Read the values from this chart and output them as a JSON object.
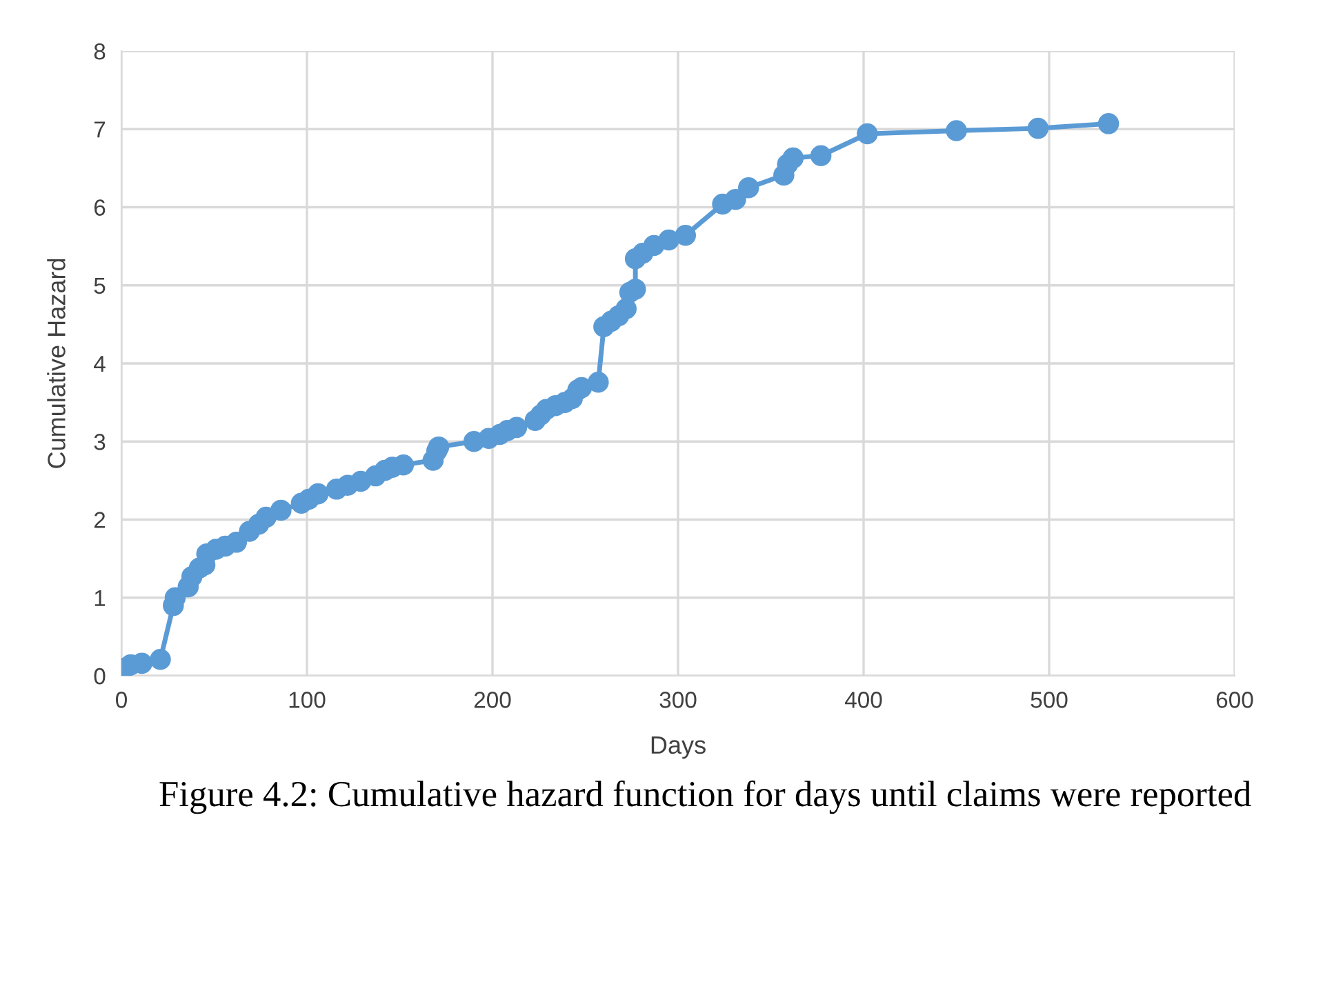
{
  "chart_data": {
    "type": "line",
    "xlabel": "Days",
    "ylabel": "Cumulative Hazard",
    "annotations": [
      "Figure 4.2: Cumulative hazard function for days until claims were reported"
    ],
    "series": [
      {
        "color": "#5b9bd5",
        "x": [
          0,
          2,
          5,
          11,
          21,
          28,
          29,
          36,
          38,
          42,
          45,
          46,
          51,
          56,
          62,
          69,
          74,
          78,
          86,
          97,
          101,
          106,
          116,
          122,
          129,
          137,
          142,
          146,
          152,
          168,
          170,
          171,
          190,
          198,
          204,
          208,
          213,
          223,
          226,
          229,
          234,
          239,
          243,
          246,
          248,
          257,
          260,
          264,
          268,
          272,
          274,
          277,
          277,
          281,
          287,
          295,
          304,
          324,
          331,
          338,
          357,
          359,
          362,
          377,
          402,
          450,
          494,
          532
        ],
        "values": [
          0.02,
          0.1,
          0.14,
          0.16,
          0.21,
          0.9,
          1.0,
          1.14,
          1.27,
          1.38,
          1.42,
          1.56,
          1.62,
          1.66,
          1.71,
          1.85,
          1.94,
          2.03,
          2.12,
          2.21,
          2.26,
          2.33,
          2.39,
          2.44,
          2.49,
          2.56,
          2.63,
          2.67,
          2.7,
          2.76,
          2.88,
          2.93,
          3.0,
          3.04,
          3.09,
          3.14,
          3.18,
          3.27,
          3.34,
          3.41,
          3.46,
          3.5,
          3.55,
          3.66,
          3.69,
          3.76,
          4.47,
          4.54,
          4.61,
          4.7,
          4.91,
          4.95,
          5.34,
          5.41,
          5.51,
          5.58,
          5.64,
          6.04,
          6.1,
          6.25,
          6.41,
          6.55,
          6.63,
          6.66,
          6.94,
          6.98,
          7.01,
          7.07
        ]
      }
    ],
    "xlim": [
      0,
      600
    ],
    "xticks": [
      0,
      100,
      200,
      300,
      400,
      500,
      600
    ],
    "ylim": [
      0,
      8
    ],
    "yticks": [
      0,
      1,
      2,
      3,
      4,
      5,
      6,
      7,
      8
    ],
    "grid": true,
    "marker": "circle",
    "line_style": "solid"
  }
}
